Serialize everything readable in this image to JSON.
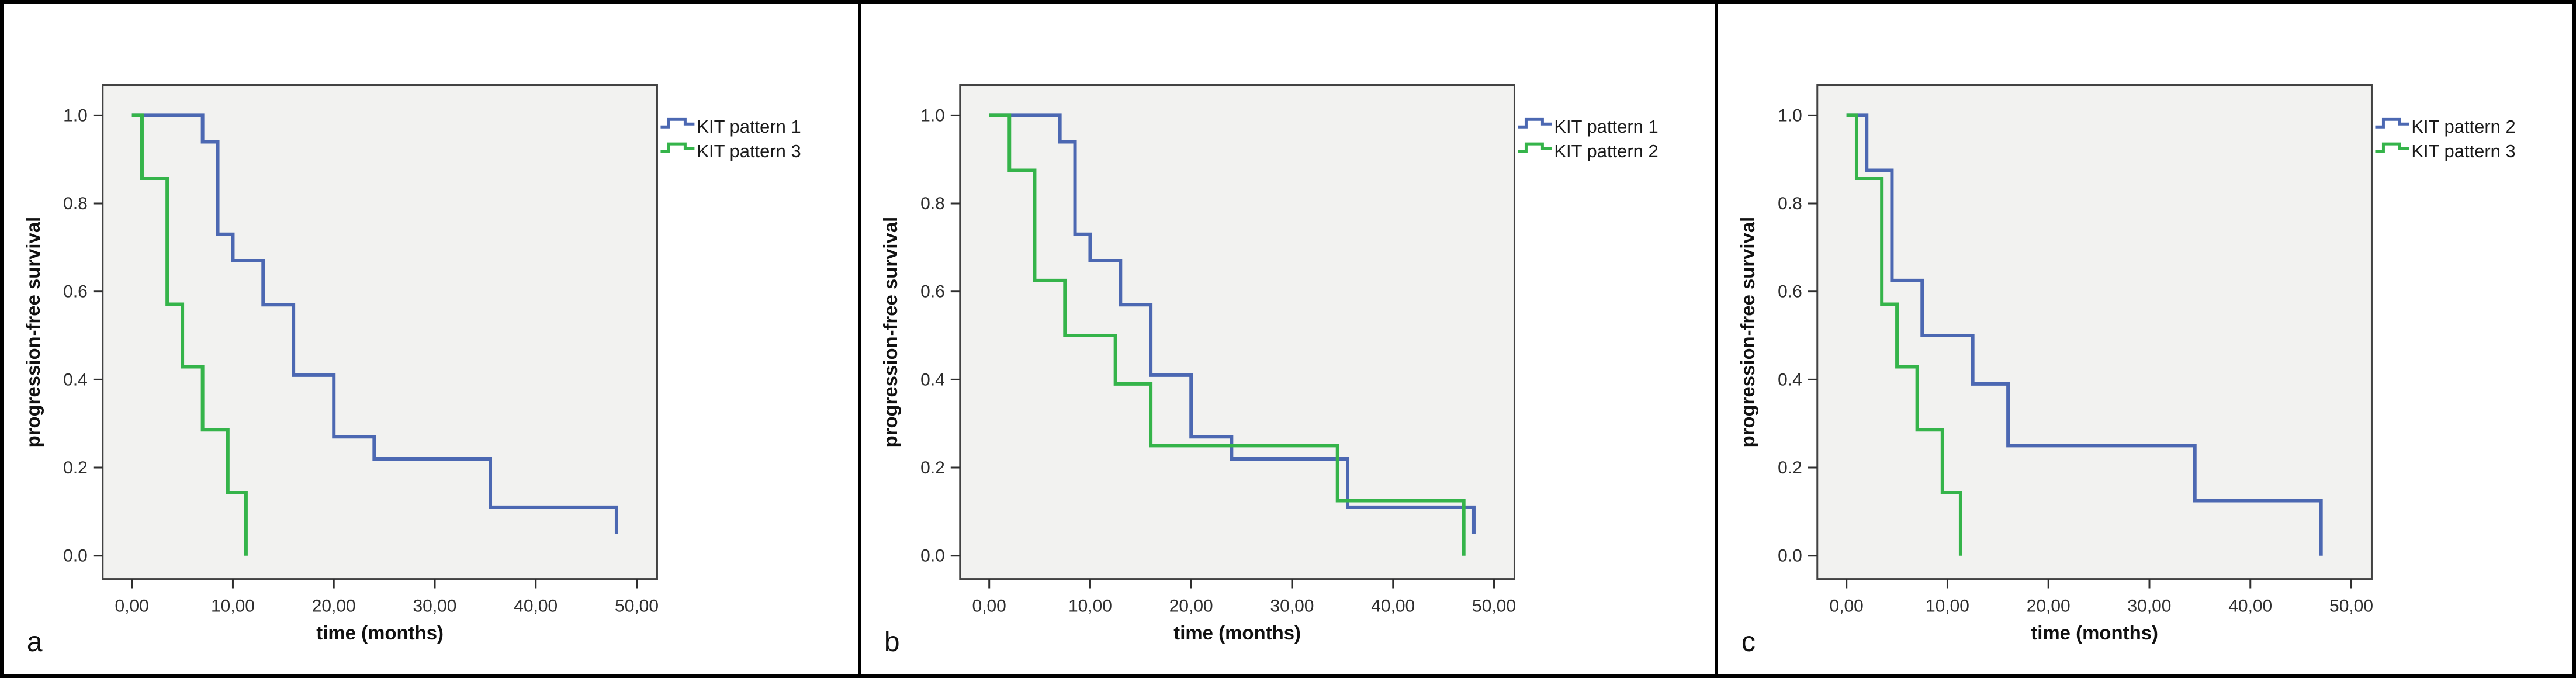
{
  "colors": {
    "blue": "#4c68b2",
    "green": "#35b44a",
    "plot_bg": "#f2f2f0",
    "plot_border": "#424242",
    "figure_border": "#000000"
  },
  "axes": {
    "xlabel": "time (months)",
    "ylabel": "progression-free survival",
    "x_ticks": [
      "0,00",
      "10,00",
      "20,00",
      "30,00",
      "40,00",
      "50,00"
    ],
    "x_tick_values": [
      0,
      10,
      20,
      30,
      40,
      50
    ],
    "y_ticks": [
      "0.0",
      "0.2",
      "0.4",
      "0.6",
      "0.8",
      "1.0"
    ],
    "y_tick_values": [
      0,
      0.2,
      0.4,
      0.6,
      0.8,
      1.0
    ],
    "xlim": [
      0,
      52
    ],
    "ylim": [
      0,
      1.05
    ],
    "grid": "off",
    "legend_position": "outside-top-right"
  },
  "chart_data": [
    {
      "type": "line",
      "subtype": "kaplan-meier-step",
      "panel": "a",
      "xlabel": "time (months)",
      "ylabel": "progression-free survival",
      "series": [
        {
          "name": "KIT pattern 1",
          "color": "blue",
          "steps": [
            [
              0,
              1.0
            ],
            [
              7,
              0.94
            ],
            [
              8.5,
              0.73
            ],
            [
              10,
              0.67
            ],
            [
              13,
              0.57
            ],
            [
              16,
              0.41
            ],
            [
              20,
              0.27
            ],
            [
              24,
              0.22
            ],
            [
              35.5,
              0.11
            ]
          ],
          "end": [
            48,
            0.05
          ]
        },
        {
          "name": "KIT pattern 3",
          "color": "green",
          "steps": [
            [
              0,
              1.0
            ],
            [
              1,
              0.857
            ],
            [
              3.5,
              0.571
            ],
            [
              5,
              0.429
            ],
            [
              7,
              0.286
            ],
            [
              9.5,
              0.143
            ]
          ],
          "end": [
            11.3,
            0.0
          ]
        }
      ]
    },
    {
      "type": "line",
      "subtype": "kaplan-meier-step",
      "panel": "b",
      "xlabel": "time (months)",
      "ylabel": "progression-free survival",
      "series": [
        {
          "name": "KIT pattern 1",
          "color": "blue",
          "steps": [
            [
              0,
              1.0
            ],
            [
              7,
              0.94
            ],
            [
              8.5,
              0.73
            ],
            [
              10,
              0.67
            ],
            [
              13,
              0.57
            ],
            [
              16,
              0.41
            ],
            [
              20,
              0.27
            ],
            [
              24,
              0.22
            ],
            [
              35.5,
              0.11
            ]
          ],
          "end": [
            48,
            0.05
          ]
        },
        {
          "name": "KIT pattern 2",
          "color": "green",
          "steps": [
            [
              0,
              1.0
            ],
            [
              2,
              0.875
            ],
            [
              4.5,
              0.625
            ],
            [
              7.5,
              0.5
            ],
            [
              12.5,
              0.39
            ],
            [
              16,
              0.25
            ],
            [
              34.5,
              0.125
            ]
          ],
          "end": [
            47,
            0.0
          ]
        }
      ]
    },
    {
      "type": "line",
      "subtype": "kaplan-meier-step",
      "panel": "c",
      "xlabel": "time (months)",
      "ylabel": "progression-free survival",
      "series": [
        {
          "name": "KIT pattern 2",
          "color": "blue",
          "steps": [
            [
              0,
              1.0
            ],
            [
              2,
              0.875
            ],
            [
              4.5,
              0.625
            ],
            [
              7.5,
              0.5
            ],
            [
              12.5,
              0.39
            ],
            [
              16,
              0.25
            ],
            [
              34.5,
              0.125
            ]
          ],
          "end": [
            47,
            0.0
          ]
        },
        {
          "name": "KIT pattern 3",
          "color": "green",
          "steps": [
            [
              0,
              1.0
            ],
            [
              1,
              0.857
            ],
            [
              3.5,
              0.571
            ],
            [
              5,
              0.429
            ],
            [
              7,
              0.286
            ],
            [
              9.5,
              0.143
            ]
          ],
          "end": [
            11.3,
            0.0
          ]
        }
      ]
    }
  ]
}
